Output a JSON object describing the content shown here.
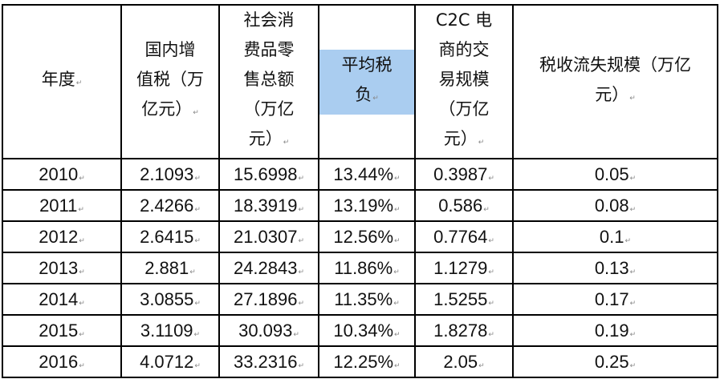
{
  "table": {
    "headers": [
      {
        "lines": [
          "年度"
        ]
      },
      {
        "lines": [
          "国内增",
          "值税（万",
          "亿元）"
        ]
      },
      {
        "lines": [
          "社会消",
          "费品零",
          "售总额",
          "（万亿",
          "元）"
        ]
      },
      {
        "lines": [
          "平均税",
          "负"
        ],
        "highlight_color": "#aacdf0"
      },
      {
        "lines": [
          "C2C 电",
          "商的交",
          "易规模",
          "（万亿",
          "元）"
        ]
      },
      {
        "lines": [
          "税收流失规模（万亿",
          "元）"
        ]
      }
    ],
    "rows": [
      [
        "2010",
        "2.1093",
        "15.6998",
        "13.44%",
        "0.3987",
        "0.05"
      ],
      [
        "2011",
        "2.4266",
        "18.3919",
        "13.19%",
        "0.586",
        "0.08"
      ],
      [
        "2012",
        "2.6415",
        "21.0307",
        "12.56%",
        "0.7764",
        "0.1"
      ],
      [
        "2013",
        "2.881",
        "24.2843",
        "11.86%",
        "1.1279",
        "0.13"
      ],
      [
        "2014",
        "3.0855",
        "27.1896",
        "11.35%",
        "1.5255",
        "0.17"
      ],
      [
        "2015",
        "3.1109",
        "30.093",
        "10.34%",
        "1.8278",
        "0.19"
      ],
      [
        "2016",
        "4.0712",
        "33.2316",
        "12.25%",
        "2.05",
        "0.25"
      ]
    ],
    "paragraph_mark": "↵"
  }
}
